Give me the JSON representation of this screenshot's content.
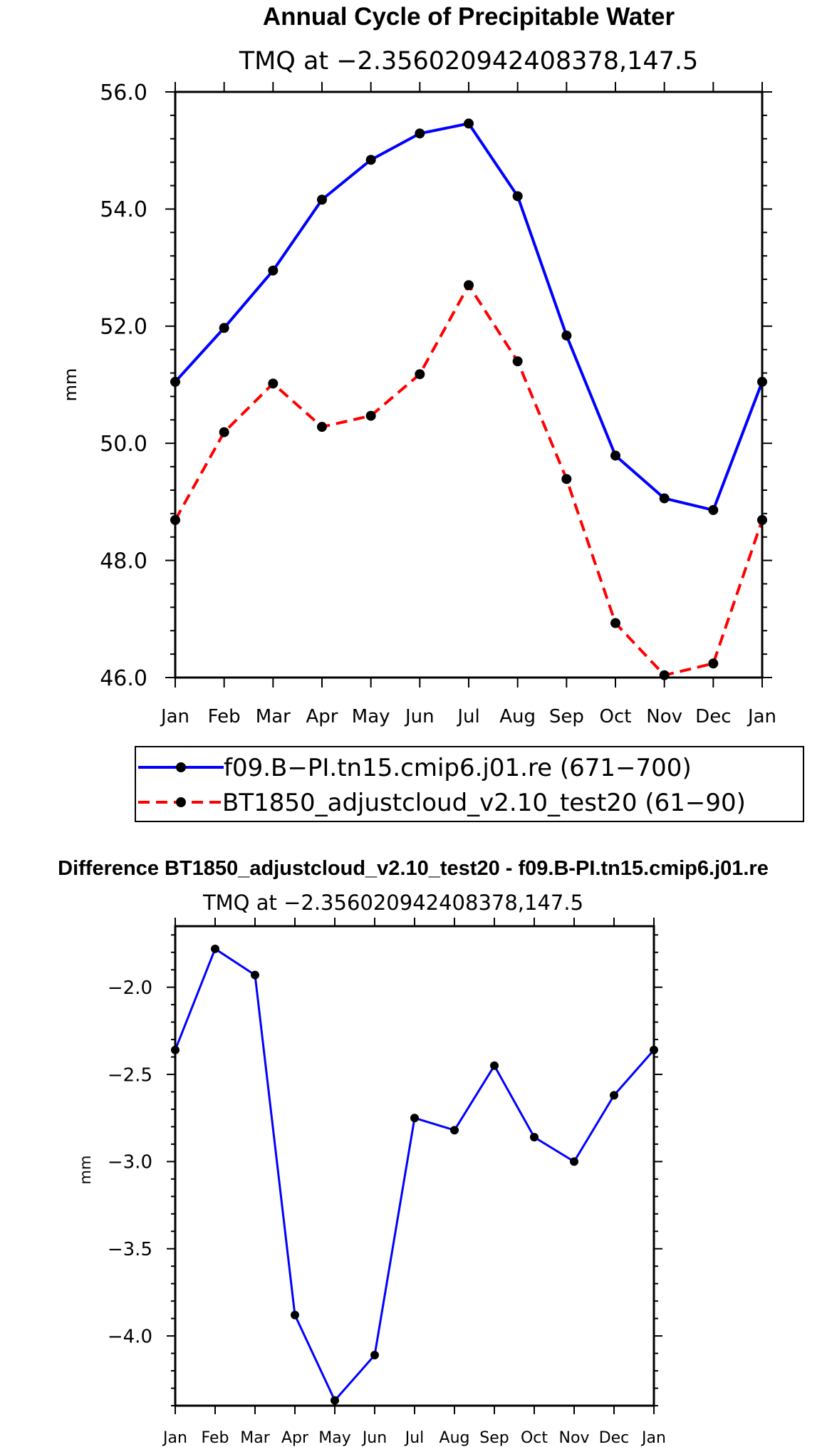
{
  "chart_data": [
    {
      "type": "line",
      "title": "Annual Cycle of Precipitable Water",
      "subtitle": "TMQ at −2.356020942408378,147.5",
      "xlabel": "",
      "ylabel": "mm",
      "categories": [
        "Jan",
        "Feb",
        "Mar",
        "Apr",
        "May",
        "Jun",
        "Jul",
        "Aug",
        "Sep",
        "Oct",
        "Nov",
        "Dec",
        "Jan"
      ],
      "ylim": [
        46.0,
        56.0
      ],
      "yticks": [
        46.0,
        48.0,
        50.0,
        52.0,
        54.0,
        56.0
      ],
      "ytick_labels": [
        "46.0",
        "48.0",
        "50.0",
        "52.0",
        "54.0",
        "56.0"
      ],
      "grid": false,
      "series": [
        {
          "name": "f09.B−PI.tn15.cmip6.j01.re (671−700)",
          "color": "#0000ff",
          "dash": "solid",
          "values": [
            51.05,
            51.97,
            52.95,
            54.16,
            54.84,
            55.29,
            55.46,
            54.22,
            51.84,
            49.79,
            49.06,
            48.86,
            51.05
          ]
        },
        {
          "name": "BT1850_adjustcloud_v2.10_test20 (61−90)",
          "color": "#ff0000",
          "dash": "dashed",
          "values": [
            48.69,
            50.19,
            51.02,
            50.28,
            50.47,
            51.18,
            52.7,
            51.4,
            49.39,
            46.93,
            46.04,
            46.24,
            48.69
          ]
        }
      ],
      "legend": "below"
    },
    {
      "type": "line",
      "title": "Difference BT1850_adjustcloud_v2.10_test20 - f09.B-PI.tn15.cmip6.j01.re",
      "subtitle": "TMQ at −2.356020942408378,147.5",
      "xlabel": "",
      "ylabel": "mm",
      "categories": [
        "Jan",
        "Feb",
        "Mar",
        "Apr",
        "May",
        "Jun",
        "Jul",
        "Aug",
        "Sep",
        "Oct",
        "Nov",
        "Dec",
        "Jan"
      ],
      "ylim": [
        -4.4,
        -1.65
      ],
      "yticks": [
        -4.0,
        -3.5,
        -3.0,
        -2.5,
        -2.0
      ],
      "ytick_labels": [
        "−4.0",
        "−3.5",
        "−3.0",
        "−2.5",
        "−2.0"
      ],
      "grid": false,
      "series": [
        {
          "name": "Difference",
          "color": "#0000ff",
          "dash": "solid",
          "values": [
            -2.36,
            -1.78,
            -1.93,
            -3.88,
            -4.37,
            -4.11,
            -2.75,
            -2.82,
            -2.45,
            -2.86,
            -3.0,
            -2.62,
            -2.36
          ]
        }
      ]
    }
  ]
}
